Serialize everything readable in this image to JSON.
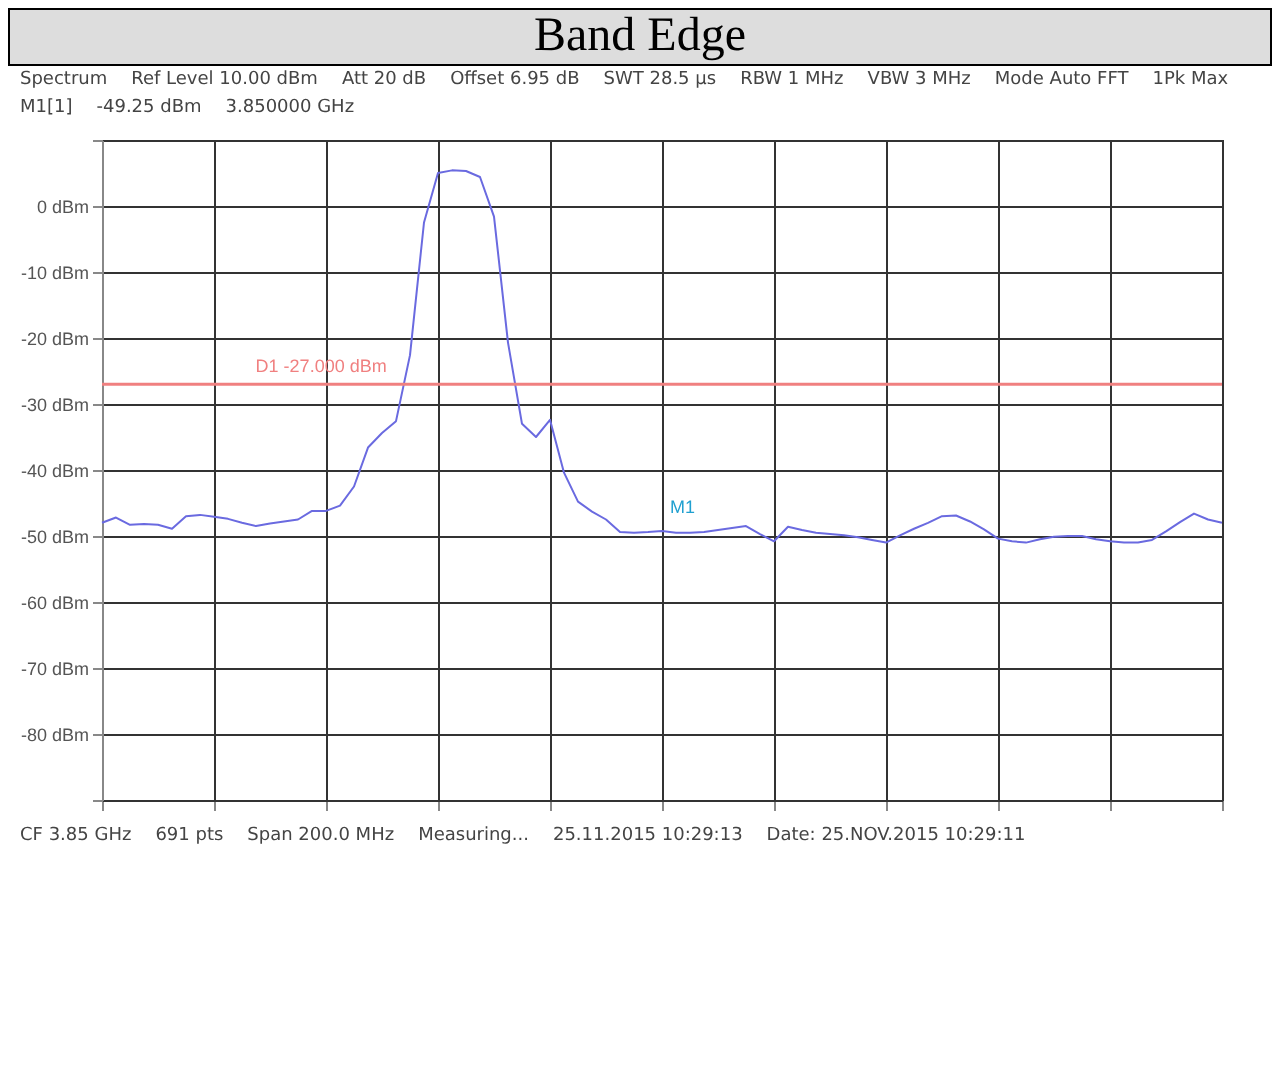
{
  "chart_data": {
    "type": "line",
    "title": "Band Edge",
    "annotations": [
      "Spectrum",
      "Ref Level 10.00 dBm",
      "Att 20 dB",
      "Offset 6.95 dB",
      "SWT 28.5 µs",
      "RBW 1 MHz",
      "VBW 3 MHz",
      "Mode Auto FFT",
      "1Pk Max",
      "M1[1]",
      "-49.25 dBm",
      "3.850000 GHz",
      "CF 3.85 GHz",
      "691 pts",
      "Span 200.0 MHz",
      "Measuring...",
      "25.11.2015 10:29:13",
      "Date: 25.NOV.2015 10:29:11",
      {
        "text": "M1",
        "y": -49.25
      }
    ],
    "categories": [
      null,
      null,
      null,
      null,
      null,
      null,
      null,
      null,
      null,
      null,
      null,
      null,
      null,
      null,
      null,
      null,
      null,
      null,
      null,
      null,
      null,
      null,
      null,
      null,
      null,
      null,
      null,
      null,
      null,
      null,
      null,
      null,
      null,
      null,
      null,
      null,
      null,
      null,
      null,
      null,
      null,
      null,
      null,
      null,
      null,
      null,
      null,
      null,
      null,
      null,
      null,
      null,
      null,
      null,
      null,
      null,
      null,
      null,
      null,
      null,
      null,
      null,
      null,
      null,
      null,
      null,
      null,
      null,
      null,
      null,
      null,
      null,
      null,
      null,
      null,
      null,
      null,
      null,
      null,
      null,
      null
    ],
    "series": [
      {
        "color": "#6a6ae0",
        "values": [
          -48,
          -47.2,
          -48.3,
          -48.2,
          -48.3,
          -48.9,
          -47,
          -46.8,
          -47.1,
          -47.4,
          -48,
          -48.5,
          -48.1,
          -47.8,
          -47.5,
          -46.2,
          -46.2,
          -45.4,
          -42.5,
          -36.6,
          -34.4,
          -32.6,
          -22.6,
          -2.5,
          5,
          5.4,
          5.3,
          4.4,
          -1.6,
          -20.7,
          -33,
          -35,
          -32.4,
          -40.4,
          -44.8,
          -46.3,
          -47.5,
          -49.4,
          -49.5,
          -49.4,
          -49.25,
          -49.5,
          -49.5,
          -49.4,
          -49.1,
          -48.8,
          -48.5,
          -49.7,
          -50.8,
          -48.6,
          -49.1,
          -49.5,
          -49.7,
          -49.9,
          -50.2,
          -50.6,
          -51,
          -49.9,
          -48.9,
          -48,
          -47,
          -46.9,
          -47.8,
          -49,
          -50.4,
          -50.8,
          -51,
          -50.5,
          -50.1,
          -50,
          -50,
          -50.5,
          -50.8,
          -51,
          -51,
          -50.6,
          -49.3,
          -47.9,
          -46.6,
          -47.5,
          -48
        ]
      }
    ],
    "ylim": [
      -90,
      10
    ],
    "yticks": [
      {
        "value": 10,
        "label": null
      },
      {
        "value": 0,
        "label": "0 dBm"
      },
      {
        "value": -10,
        "label": "-10 dBm"
      },
      {
        "value": -20,
        "label": "-20 dBm"
      },
      {
        "value": -30,
        "label": "-30 dBm"
      },
      {
        "value": -40,
        "label": "-40 dBm"
      },
      {
        "value": -50,
        "label": "-50 dBm"
      },
      {
        "value": -60,
        "label": "-60 dBm"
      },
      {
        "value": -70,
        "label": "-70 dBm"
      },
      {
        "value": -80,
        "label": "-80 dBm"
      },
      {
        "value": -90,
        "label": null
      }
    ],
    "ref_lines": [
      {
        "axis": "y",
        "value": -27,
        "label": "D1 -27.000 dBm",
        "color": "#f08080"
      }
    ],
    "grid": true,
    "tick_labels": "y",
    "line_style": "solid"
  }
}
